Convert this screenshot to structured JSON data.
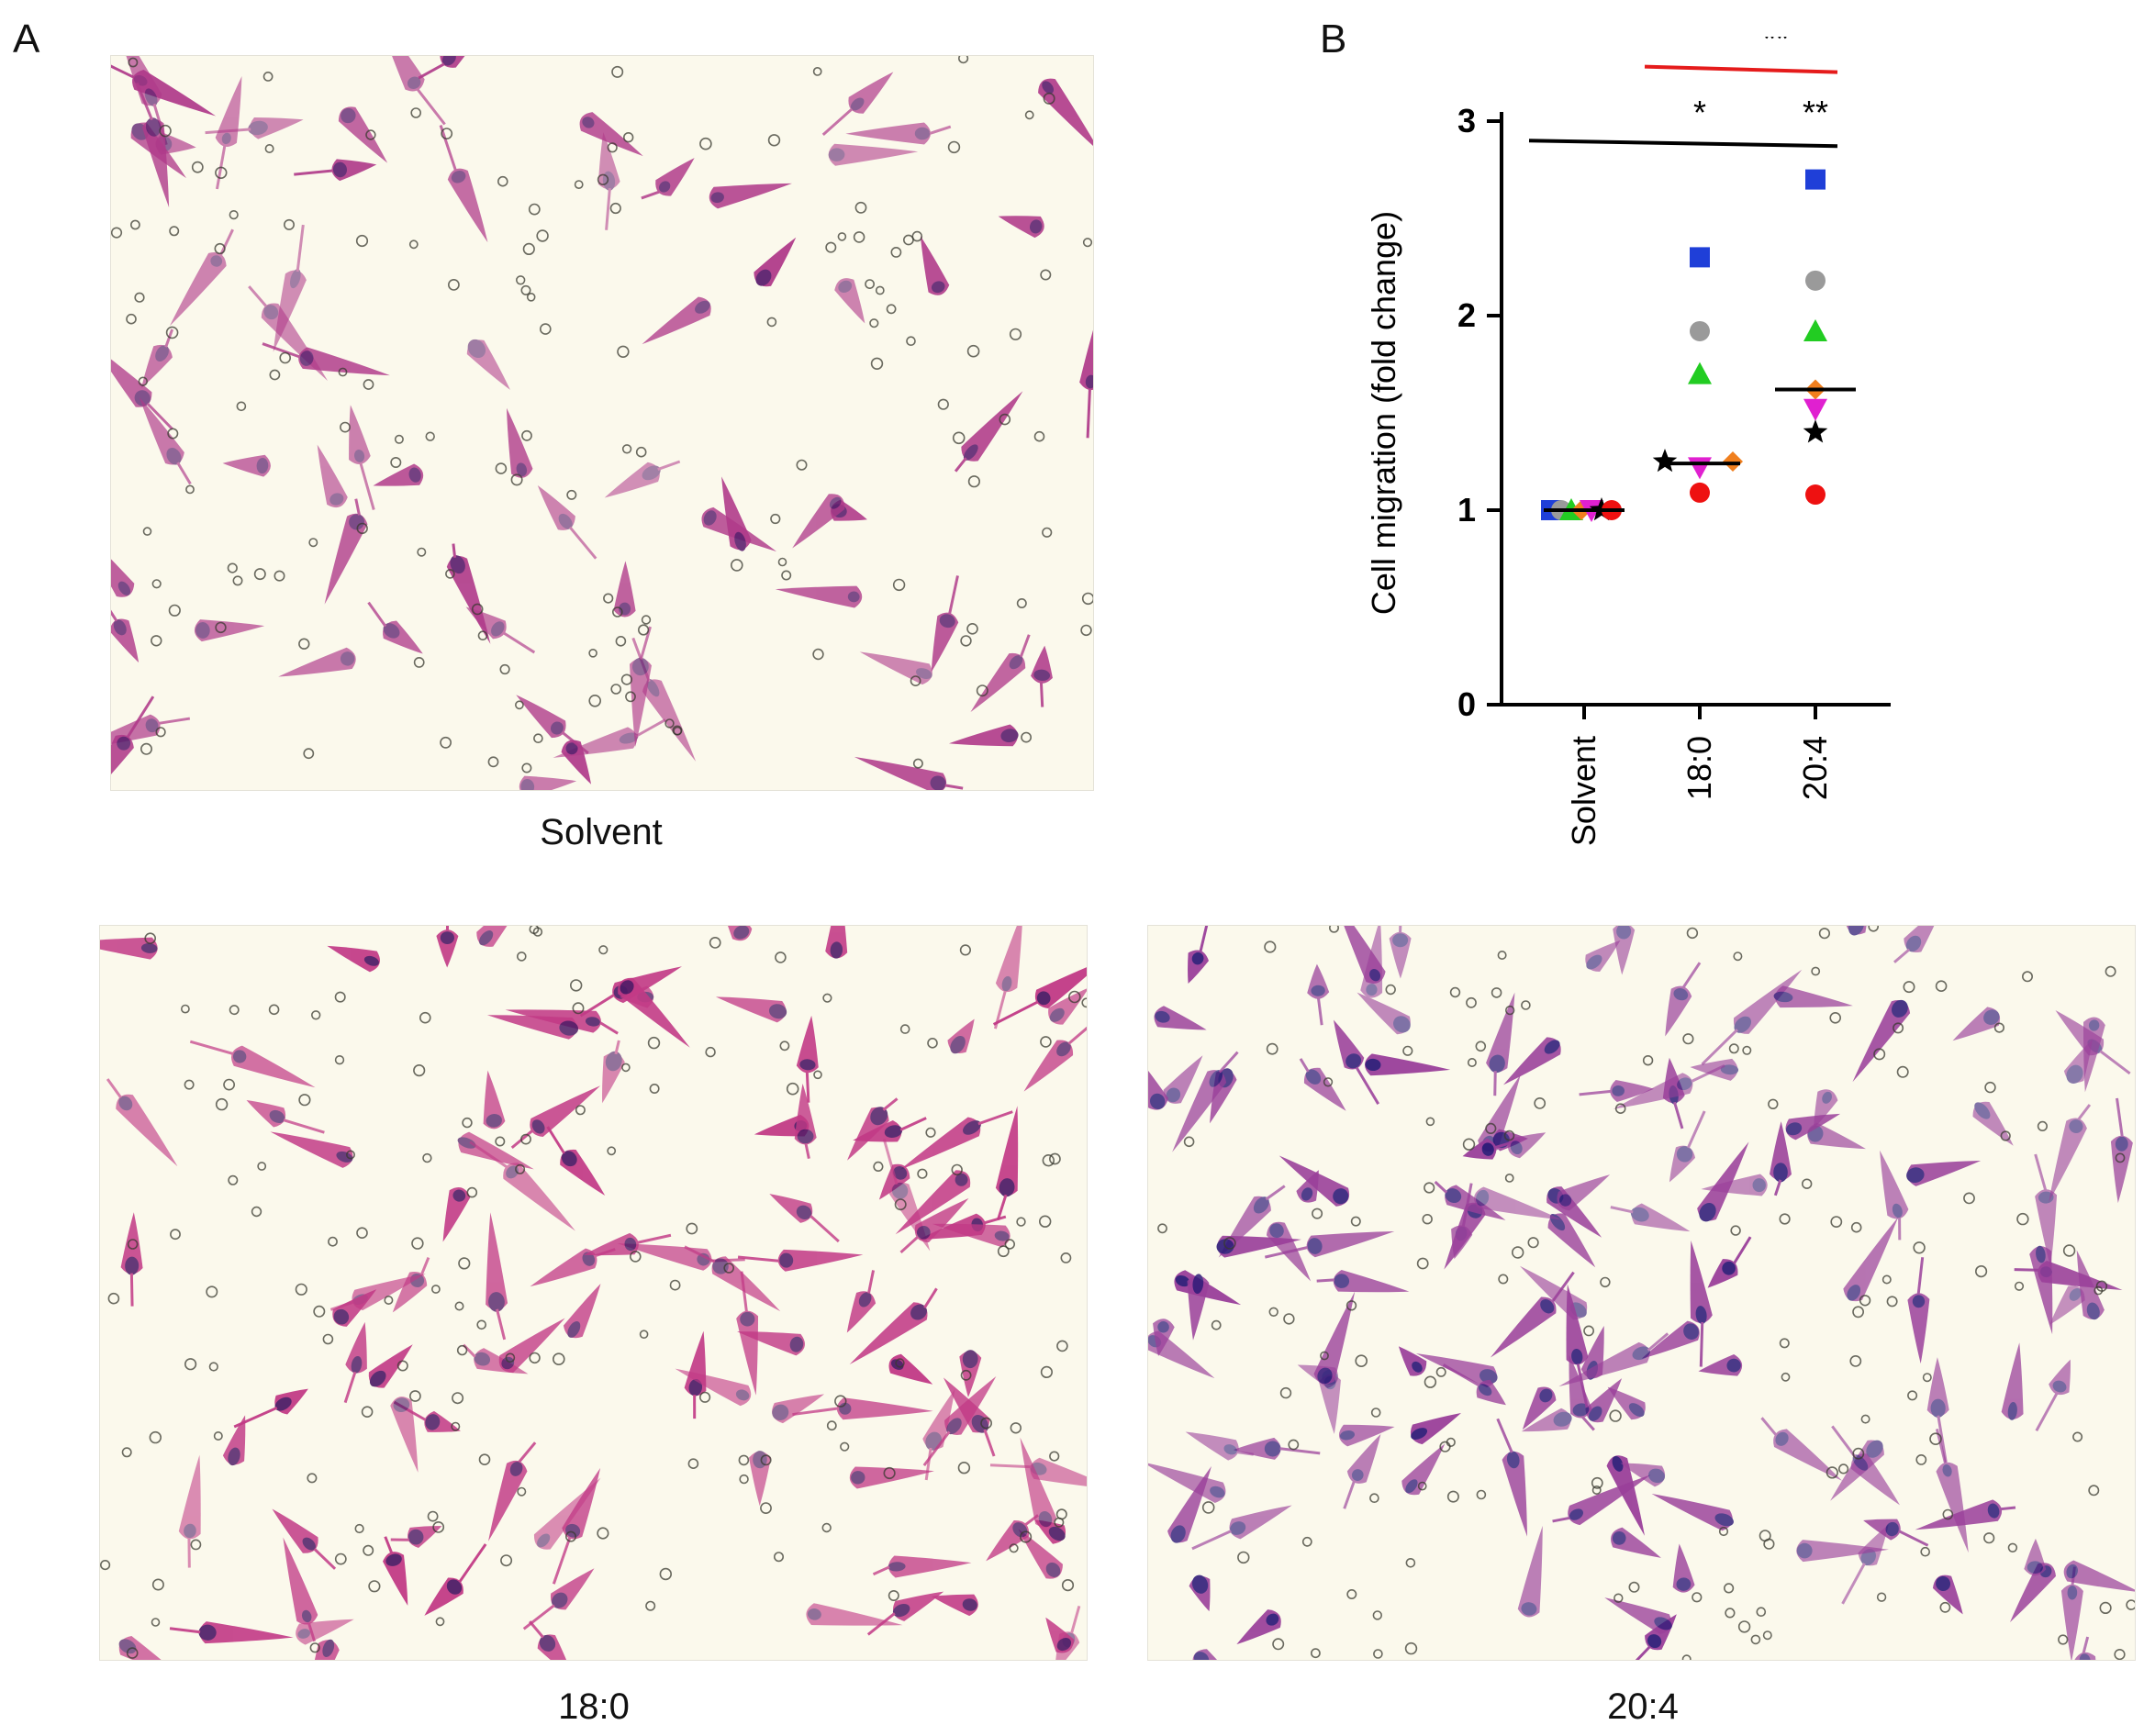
{
  "figure": {
    "panel_a_label": "A",
    "panel_b_label": "B",
    "micrographs": [
      {
        "caption": "Solvent",
        "stain": "#b03a8a",
        "stain_dark": "#5b1f6e",
        "density": 1.0
      },
      {
        "caption": "18:0",
        "stain": "#c23a86",
        "stain_dark": "#4d1a66",
        "density": 1.45
      },
      {
        "caption": "20:4",
        "stain": "#9a3f9a",
        "stain_dark": "#2e1a78",
        "density": 1.9
      }
    ],
    "background": "#fbf9ec"
  },
  "chart_data": {
    "type": "scatter",
    "ylabel": "Cell migration (fold change)",
    "xlabel": "",
    "ylim": [
      0,
      3
    ],
    "yticks": [
      0,
      1,
      2,
      3
    ],
    "categories": [
      "Solvent",
      "18:0",
      "20:4"
    ],
    "series": [
      {
        "marker": "square",
        "color": "#1f3fd8",
        "values": [
          1.0,
          2.3,
          2.7
        ]
      },
      {
        "marker": "circle",
        "color": "#9a9a9a",
        "values": [
          1.0,
          1.92,
          2.18
        ]
      },
      {
        "marker": "triangle-up",
        "color": "#22cc22",
        "values": [
          1.0,
          1.7,
          1.92
        ]
      },
      {
        "marker": "diamond",
        "color": "#f07f1e",
        "values": [
          1.0,
          1.25,
          1.62
        ]
      },
      {
        "marker": "triangle-down",
        "color": "#e020d0",
        "values": [
          1.0,
          1.22,
          1.52
        ]
      },
      {
        "marker": "star",
        "color": "#000000",
        "values": [
          1.0,
          1.25,
          1.4
        ]
      },
      {
        "marker": "circle",
        "color": "#ee1111",
        "values": [
          1.0,
          1.09,
          1.08
        ]
      }
    ],
    "medians": [
      1.0,
      1.24,
      1.62
    ],
    "significance": [
      {
        "from": "Solvent",
        "to": "20:4",
        "color": "#000000",
        "labels": [
          {
            "at": "18:0",
            "text": "*"
          },
          {
            "at": "20:4",
            "text": "**"
          }
        ],
        "y": 2.9
      },
      {
        "from": "18:0",
        "to": "20:4",
        "color": "#e51b1b",
        "labels": [
          {
            "at": "mid",
            "text": "**"
          }
        ],
        "y": 3.28
      }
    ]
  }
}
